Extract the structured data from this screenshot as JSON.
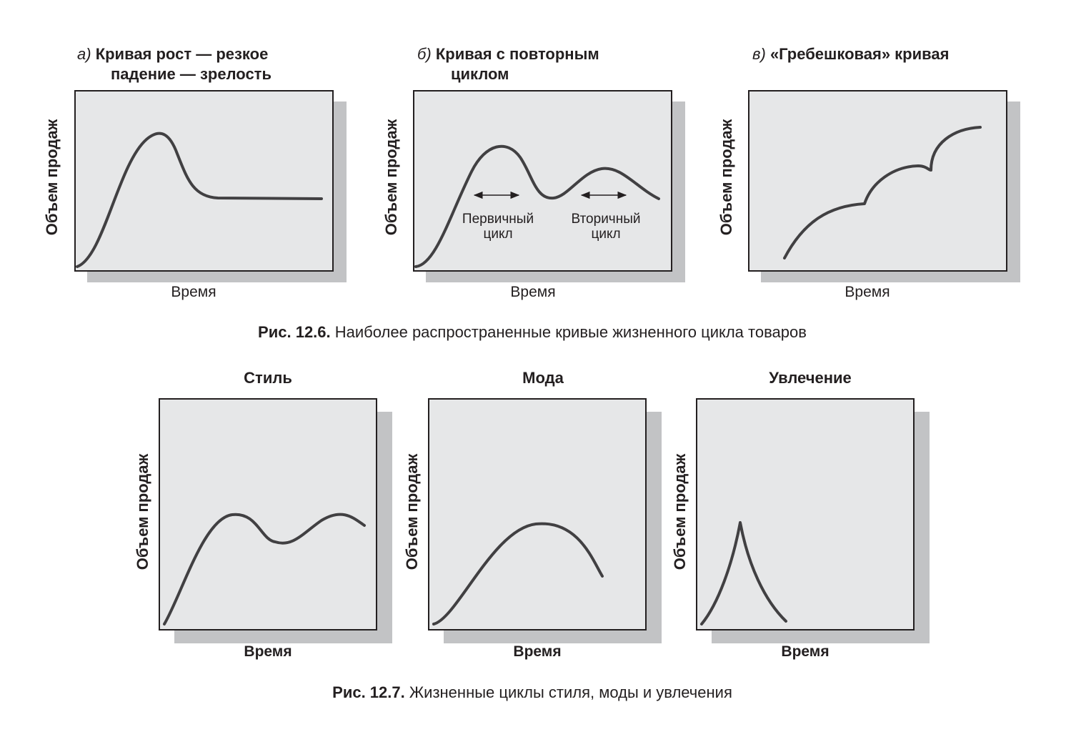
{
  "figure1": {
    "caption_bold": "Рис. 12.6.",
    "caption_text": " Наиболее распространенные кривые жизненного цикла товаров",
    "panels": [
      {
        "letter": "а)",
        "title_line1": "Кривая рост — резкое",
        "title_line2": "падение — зрелость",
        "ylabel": "Объем продаж",
        "xlabel": "Время"
      },
      {
        "letter": "б)",
        "title_line1": "Кривая с повторным",
        "title_line2": "циклом",
        "ylabel": "Объем продаж",
        "xlabel": "Время",
        "annotations": {
          "primary_line1": "Первичный",
          "primary_line2": "цикл",
          "secondary_line1": "Вторичный",
          "secondary_line2": "цикл"
        }
      },
      {
        "letter": "в)",
        "title_line1": "«Гребешковая» кривая",
        "ylabel": "Объем продаж",
        "xlabel": "Время"
      }
    ]
  },
  "figure2": {
    "caption_bold": "Рис. 12.7.",
    "caption_text": " Жизненные циклы стиля, моды и увлечения",
    "panels": [
      {
        "title": "Стиль",
        "ylabel": "Объем продаж",
        "xlabel": "Время"
      },
      {
        "title": "Мода",
        "ylabel": "Объем продаж",
        "xlabel": "Время"
      },
      {
        "title": "Увлечение",
        "ylabel": "Объем продаж",
        "xlabel": "Время"
      }
    ]
  },
  "colors": {
    "panel_fill": "#e6e7e8",
    "shadow": "#c2c3c5",
    "curve": "#414042",
    "ink": "#231f20"
  }
}
